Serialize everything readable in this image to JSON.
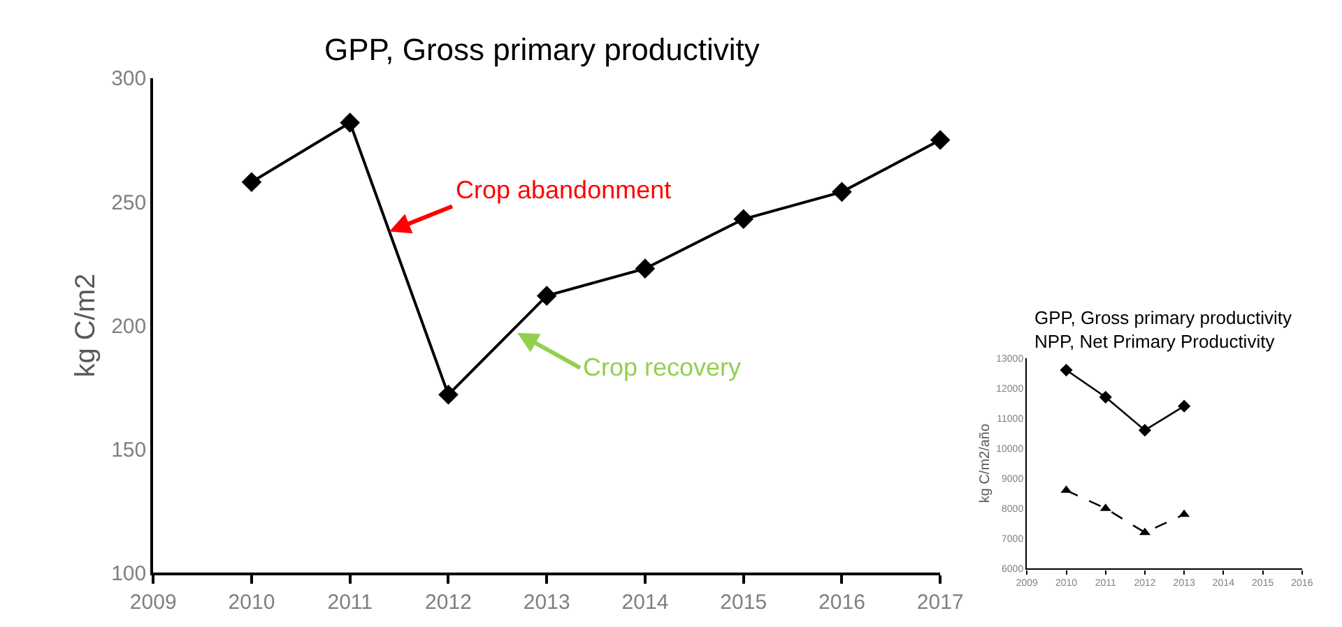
{
  "chart_data": [
    {
      "type": "line",
      "title": "GPP, Gross primary productivity",
      "ylabel": "kg C/m2",
      "x": [
        2010,
        2011,
        2012,
        2013,
        2014,
        2015,
        2016,
        2017
      ],
      "series": [
        {
          "color": "#000000",
          "values": [
            258,
            282,
            172,
            212,
            223,
            243,
            254,
            275
          ],
          "marker": "diamond",
          "line_style": "solid"
        }
      ],
      "xlim": [
        2009,
        2017
      ],
      "xticks": [
        2009,
        2010,
        2011,
        2012,
        2013,
        2014,
        2015,
        2016,
        2017
      ],
      "ylim": [
        100,
        300
      ],
      "yticks": [
        100,
        150,
        200,
        250,
        300
      ],
      "annotations": [
        {
          "text": "Crop abandonment",
          "x": 2011.4,
          "y": 238
        },
        {
          "text": "Crop recovery",
          "x": 2012.7,
          "y": 197
        }
      ]
    },
    {
      "type": "line",
      "title": "GPP, Gross primary productivity",
      "subtitle": "NPP, Net Primary Productivity",
      "ylabel": "kg C/m2/año",
      "x": [
        2010,
        2011,
        2012,
        2013
      ],
      "series": [
        {
          "color": "#000000",
          "values": [
            12600,
            11700,
            10600,
            11400
          ],
          "marker": "diamond",
          "line_style": "solid"
        },
        {
          "color": "#000000",
          "values": [
            8600,
            8000,
            7200,
            7800
          ],
          "marker": "triangle",
          "line_style": "dashed"
        }
      ],
      "xlim": [
        2009,
        2016
      ],
      "xticks": [
        2009,
        2010,
        2011,
        2012,
        2013,
        2014,
        2015,
        2016
      ],
      "ylim": [
        6000,
        13000
      ],
      "yticks": [
        6000,
        7000,
        8000,
        9000,
        10000,
        11000,
        12000,
        13000
      ]
    }
  ]
}
